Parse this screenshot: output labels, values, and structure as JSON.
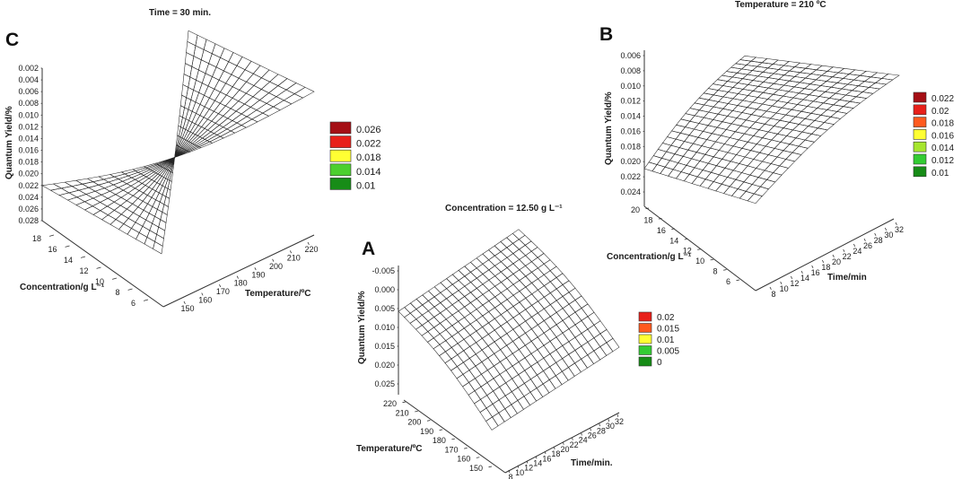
{
  "chart_data": [
    {
      "id": "C",
      "type": "surface",
      "panel_letter": "C",
      "title": "Time = 30 min.",
      "zlabel": "Quantum Yield/%",
      "xlabel": "Concentration/g L⁻¹",
      "ylabel": "Temperature/ºC",
      "zticks": [
        "0.002",
        "0.004",
        "0.006",
        "0.008",
        "0.010",
        "0.012",
        "0.014",
        "0.016",
        "0.018",
        "0.020",
        "0.022",
        "0.024",
        "0.026",
        "0.028"
      ],
      "xticks": [
        "18",
        "16",
        "14",
        "12",
        "10",
        "8",
        "6"
      ],
      "yticks": [
        "150",
        "160",
        "170",
        "180",
        "190",
        "200",
        "210",
        "220"
      ],
      "legend": [
        {
          "label": "0.026",
          "color": "#a50f15"
        },
        {
          "label": "0.022",
          "color": "#e8201a"
        },
        {
          "label": "0.018",
          "color": "#ffff33"
        },
        {
          "label": "0.014",
          "color": "#4ccf2e"
        },
        {
          "label": "0.01",
          "color": "#178c17"
        }
      ],
      "surface_corners": {
        "high_temp_low_conc": 0.0275,
        "high_temp_high_conc": 0.024,
        "low_temp_high_conc": 0.008,
        "low_temp_low_conc": 0.004
      }
    },
    {
      "id": "B",
      "type": "surface",
      "panel_letter": "B",
      "title": "Temperature = 210 ºC",
      "zlabel": "Quantum Yield/%",
      "xlabel": "Concentration/g L⁻¹",
      "ylabel": "Time/min",
      "zticks": [
        "0.006",
        "0.008",
        "0.010",
        "0.012",
        "0.014",
        "0.016",
        "0.018",
        "0.020",
        "0.022",
        "0.024"
      ],
      "xticks": [
        "20",
        "18",
        "16",
        "14",
        "12",
        "10",
        "8",
        "6"
      ],
      "yticks": [
        "8",
        "10",
        "12",
        "14",
        "16",
        "18",
        "20",
        "22",
        "24",
        "26",
        "28",
        "30",
        "32"
      ],
      "legend": [
        {
          "label": "0.022",
          "color": "#a50f15"
        },
        {
          "label": "0.02",
          "color": "#e8201a"
        },
        {
          "label": "0.018",
          "color": "#ff5a1f"
        },
        {
          "label": "0.016",
          "color": "#ffff33"
        },
        {
          "label": "0.014",
          "color": "#a6e62e"
        },
        {
          "label": "0.012",
          "color": "#33cc33"
        },
        {
          "label": "0.01",
          "color": "#178c17"
        }
      ],
      "surface_corners": {
        "long_time_low_conc": 0.0235,
        "long_time_high_conc": 0.021,
        "short_time_high_conc": 0.008,
        "short_time_low_conc": 0.009
      }
    },
    {
      "id": "A",
      "type": "surface",
      "panel_letter": "A",
      "title": "Concentration = 12.50 g L⁻¹",
      "zlabel": "Quantum Yield/%",
      "xlabel": "Temperature/ºC",
      "ylabel": "Time/min.",
      "zticks": [
        "-0.005",
        "0.000",
        "0.005",
        "0.010",
        "0.015",
        "0.020",
        "0.025"
      ],
      "xticks": [
        "220",
        "210",
        "200",
        "190",
        "180",
        "170",
        "160",
        "150"
      ],
      "yticks": [
        "8",
        "10",
        "12",
        "14",
        "16",
        "18",
        "20",
        "22",
        "24",
        "26",
        "28",
        "30",
        "32"
      ],
      "legend": [
        {
          "label": "0.02",
          "color": "#e8201a"
        },
        {
          "label": "0.015",
          "color": "#ff5a1f"
        },
        {
          "label": "0.01",
          "color": "#ffff33"
        },
        {
          "label": "0.005",
          "color": "#33cc33"
        },
        {
          "label": "0",
          "color": "#178c17"
        }
      ],
      "surface_corners": {
        "high_temp_long_time": 0.026,
        "high_temp_short_time": 0.014,
        "low_temp_short_time": -0.008,
        "low_temp_long_time": 0.007
      }
    }
  ]
}
